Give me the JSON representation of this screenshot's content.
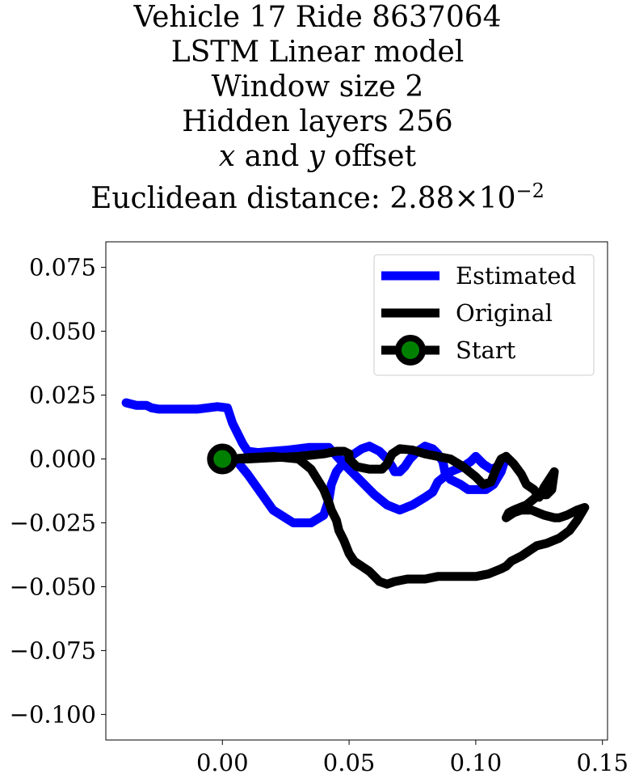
{
  "title": {
    "line1": "Vehicle 17 Ride 8637064",
    "line2": "LSTM Linear model",
    "line3": "Window size 2",
    "line4": "Hidden layers 256",
    "line5_x": "x",
    "line5_mid": " and ",
    "line5_y": "y",
    "line5_end": " offset",
    "line6_prefix": "Euclidean distance: ",
    "line6_mantissa": "2.88",
    "line6_times": "×10",
    "line6_exp": "−2"
  },
  "chart_data": {
    "type": "line",
    "xlim": [
      -0.046,
      0.152
    ],
    "ylim": [
      -0.11,
      0.085
    ],
    "xticks": [
      0.0,
      0.05,
      0.1,
      0.15
    ],
    "xtick_labels": [
      "0.00",
      "0.05",
      "0.10",
      "0.15"
    ],
    "yticks": [
      0.075,
      0.05,
      0.025,
      0.0,
      -0.025,
      -0.05,
      -0.075,
      -0.1
    ],
    "ytick_labels": [
      "0.075",
      "0.050",
      "0.025",
      "0.000",
      "−0.025",
      "−0.050",
      "−0.075",
      "−0.100"
    ],
    "grid": false,
    "legend_position": "top-right",
    "series": [
      {
        "name": "Estimated",
        "color": "#0000ff",
        "x": [
          -0.038,
          -0.034,
          -0.03,
          -0.028,
          -0.025,
          -0.02,
          -0.01,
          -0.002,
          0.002,
          0.004,
          0.006,
          0.008,
          0.01,
          0.014,
          0.02,
          0.026,
          0.03,
          0.034,
          0.037,
          0.042,
          0.048,
          0.055,
          0.06,
          0.065,
          0.07,
          0.075,
          0.08,
          0.083,
          0.085,
          0.09,
          0.095,
          0.098,
          0.1,
          0.103,
          0.106,
          0.109,
          0.11,
          0.111,
          0.112,
          0.11,
          0.107,
          0.104,
          0.1,
          0.097,
          0.094,
          0.09,
          0.088,
          0.087,
          0.085,
          0.083,
          0.08,
          0.077,
          0.074,
          0.072,
          0.07,
          0.068,
          0.067,
          0.065,
          0.062,
          0.058,
          0.055,
          0.049,
          0.045,
          0.043,
          0.042,
          0.04,
          0.035,
          0.028,
          0.02,
          0.015,
          0.01,
          0.005
        ],
        "y": [
          0.022,
          0.021,
          0.021,
          0.02,
          0.0195,
          0.0195,
          0.0195,
          0.0205,
          0.02,
          0.014,
          0.01,
          0.006,
          0.003,
          0.0025,
          0.003,
          0.0035,
          0.004,
          0.0045,
          0.0045,
          0.0045,
          -0.002,
          -0.009,
          -0.014,
          -0.018,
          -0.02,
          -0.018,
          -0.015,
          -0.013,
          -0.009,
          -0.005,
          -0.003,
          -0.001,
          0.001,
          -0.002,
          -0.004,
          -0.003,
          -0.002,
          0.0,
          0.001,
          -0.005,
          -0.01,
          -0.012,
          -0.012,
          -0.012,
          -0.01,
          -0.008,
          -0.006,
          -0.001,
          0.002,
          0.004,
          0.005,
          0.003,
          0.0,
          -0.003,
          -0.005,
          -0.005,
          -0.003,
          0.0,
          0.003,
          0.005,
          0.004,
          0.0,
          -0.005,
          -0.01,
          -0.016,
          -0.022,
          -0.025,
          -0.025,
          -0.02,
          -0.013,
          -0.006,
          0.0
        ]
      },
      {
        "name": "Original",
        "color": "#000000",
        "x": [
          0.0,
          0.01,
          0.02,
          0.03,
          0.04,
          0.045,
          0.048,
          0.05,
          0.05,
          0.053,
          0.058,
          0.063,
          0.065,
          0.067,
          0.07,
          0.075,
          0.08,
          0.085,
          0.09,
          0.095,
          0.1,
          0.103,
          0.106,
          0.108,
          0.11,
          0.112,
          0.113,
          0.115,
          0.118,
          0.12,
          0.123,
          0.125,
          0.127,
          0.129,
          0.131,
          0.13,
          0.128,
          0.125,
          0.12,
          0.115,
          0.113,
          0.112,
          0.115,
          0.118,
          0.122,
          0.127,
          0.131,
          0.133,
          0.136,
          0.14,
          0.143,
          0.14,
          0.137,
          0.133,
          0.128,
          0.124,
          0.121,
          0.118,
          0.116,
          0.114,
          0.113,
          0.112,
          0.11,
          0.105,
          0.1,
          0.097,
          0.094,
          0.09,
          0.085,
          0.08,
          0.073,
          0.068,
          0.065,
          0.062,
          0.06,
          0.058,
          0.055,
          0.052,
          0.05,
          0.048,
          0.046,
          0.045,
          0.043,
          0.042,
          0.04,
          0.035,
          0.03,
          0.02,
          0.01,
          0.004,
          0.002,
          0.0
        ],
        "y": [
          0.0,
          0.0,
          0.0005,
          0.001,
          0.002,
          0.003,
          0.003,
          0.002,
          0.0,
          -0.003,
          -0.004,
          -0.004,
          -0.002,
          0.002,
          0.004,
          0.0035,
          0.002,
          0.001,
          0.0,
          -0.003,
          -0.007,
          -0.01,
          -0.009,
          -0.004,
          0.0,
          0.001,
          0.0,
          -0.002,
          -0.006,
          -0.01,
          -0.012,
          -0.015,
          -0.011,
          -0.008,
          -0.005,
          -0.012,
          -0.014,
          -0.014,
          -0.018,
          -0.02,
          -0.021,
          -0.023,
          -0.021,
          -0.02,
          -0.02,
          -0.022,
          -0.023,
          -0.023,
          -0.022,
          -0.02,
          -0.019,
          -0.024,
          -0.028,
          -0.031,
          -0.033,
          -0.034,
          -0.036,
          -0.038,
          -0.039,
          -0.04,
          -0.041,
          -0.042,
          -0.043,
          -0.045,
          -0.046,
          -0.046,
          -0.046,
          -0.046,
          -0.046,
          -0.047,
          -0.047,
          -0.048,
          -0.049,
          -0.048,
          -0.046,
          -0.044,
          -0.042,
          -0.04,
          -0.037,
          -0.032,
          -0.028,
          -0.024,
          -0.02,
          -0.017,
          -0.012,
          -0.004,
          0.0,
          0.001,
          0.0005,
          0.0,
          0.0,
          0.0
        ]
      }
    ],
    "start": {
      "name": "Start",
      "x": 0.0,
      "y": 0.0,
      "outer_color": "#000000",
      "inner_color": "#008000"
    }
  }
}
